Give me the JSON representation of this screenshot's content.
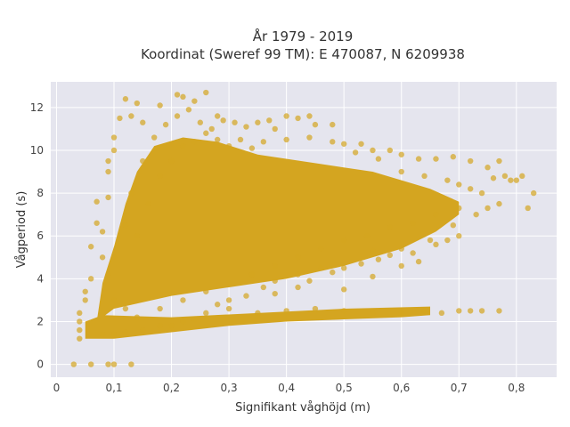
{
  "chart_data": {
    "type": "scatter",
    "title_lines": [
      "År 1979 - 2019",
      "Koordinat (Sweref 99 TM): E 470087, N 6209938"
    ],
    "xlabel": "Signifikant våghöjd (m)",
    "ylabel": "Vågperiod (s)",
    "xlim": [
      -0.01,
      0.87
    ],
    "ylim": [
      -0.6,
      13.2
    ],
    "x_ticks": [
      0,
      0.1,
      0.2,
      0.3,
      0.4,
      0.5,
      0.6,
      0.7,
      0.8
    ],
    "x_tick_labels": [
      "0",
      "0,1",
      "0,2",
      "0,3",
      "0,4",
      "0,5",
      "0,6",
      "0,7",
      "0,8"
    ],
    "y_ticks": [
      0,
      2,
      4,
      6,
      8,
      10,
      12
    ],
    "y_tick_labels": [
      "0",
      "2",
      "4",
      "6",
      "8",
      "10",
      "12"
    ],
    "grid": true,
    "marker_color": "#d4a520",
    "plot_background": "#e5e5ee",
    "series": [
      {
        "points": [
          [
            0.03,
            0.0
          ],
          [
            0.06,
            0.0
          ],
          [
            0.09,
            0.0
          ],
          [
            0.1,
            0.0
          ],
          [
            0.13,
            0.0
          ],
          [
            0.04,
            1.2
          ],
          [
            0.04,
            1.6
          ],
          [
            0.04,
            2.0
          ],
          [
            0.04,
            2.4
          ],
          [
            0.05,
            3.0
          ],
          [
            0.05,
            3.4
          ],
          [
            0.06,
            4.0
          ],
          [
            0.06,
            5.5
          ],
          [
            0.07,
            7.6
          ],
          [
            0.07,
            6.6
          ],
          [
            0.08,
            6.2
          ],
          [
            0.08,
            5.0
          ],
          [
            0.09,
            7.8
          ],
          [
            0.09,
            9.0
          ],
          [
            0.09,
            9.5
          ],
          [
            0.1,
            10.6
          ],
          [
            0.1,
            10.0
          ],
          [
            0.11,
            11.5
          ],
          [
            0.12,
            12.4
          ],
          [
            0.13,
            11.6
          ],
          [
            0.14,
            12.2
          ],
          [
            0.15,
            11.3
          ],
          [
            0.18,
            12.1
          ],
          [
            0.21,
            12.6
          ],
          [
            0.22,
            12.5
          ],
          [
            0.24,
            12.3
          ],
          [
            0.26,
            12.7
          ],
          [
            0.28,
            11.6
          ],
          [
            0.29,
            11.4
          ],
          [
            0.31,
            11.3
          ],
          [
            0.33,
            11.1
          ],
          [
            0.35,
            11.3
          ],
          [
            0.37,
            11.4
          ],
          [
            0.38,
            11.0
          ],
          [
            0.4,
            11.6
          ],
          [
            0.42,
            11.5
          ],
          [
            0.44,
            11.6
          ],
          [
            0.45,
            11.2
          ],
          [
            0.48,
            11.2
          ],
          [
            0.53,
            10.3
          ],
          [
            0.55,
            10.0
          ],
          [
            0.58,
            10.0
          ],
          [
            0.6,
            9.8
          ],
          [
            0.63,
            9.6
          ],
          [
            0.66,
            9.6
          ],
          [
            0.69,
            9.7
          ],
          [
            0.72,
            9.5
          ],
          [
            0.75,
            9.2
          ],
          [
            0.76,
            8.7
          ],
          [
            0.77,
            9.5
          ],
          [
            0.78,
            8.8
          ],
          [
            0.79,
            8.6
          ],
          [
            0.8,
            8.6
          ],
          [
            0.81,
            8.8
          ],
          [
            0.82,
            7.3
          ],
          [
            0.83,
            8.0
          ],
          [
            0.74,
            8.0
          ],
          [
            0.75,
            7.3
          ],
          [
            0.77,
            7.5
          ],
          [
            0.73,
            7.0
          ],
          [
            0.7,
            6.0
          ],
          [
            0.69,
            6.5
          ],
          [
            0.68,
            5.8
          ],
          [
            0.66,
            5.6
          ],
          [
            0.65,
            5.8
          ],
          [
            0.62,
            5.2
          ],
          [
            0.6,
            5.4
          ],
          [
            0.58,
            5.1
          ],
          [
            0.56,
            4.9
          ],
          [
            0.55,
            5.3
          ],
          [
            0.53,
            4.7
          ],
          [
            0.5,
            4.5
          ],
          [
            0.48,
            4.3
          ],
          [
            0.46,
            4.5
          ],
          [
            0.44,
            3.9
          ],
          [
            0.42,
            4.2
          ],
          [
            0.38,
            3.9
          ],
          [
            0.36,
            3.6
          ],
          [
            0.33,
            3.2
          ],
          [
            0.3,
            3.0
          ],
          [
            0.28,
            2.8
          ],
          [
            0.26,
            2.4
          ],
          [
            0.24,
            2.1
          ],
          [
            0.22,
            2.0
          ],
          [
            0.2,
            1.8
          ],
          [
            0.18,
            1.8
          ],
          [
            0.15,
            1.6
          ],
          [
            0.12,
            1.5
          ],
          [
            0.1,
            1.4
          ],
          [
            0.08,
            1.4
          ],
          [
            0.3,
            2.6
          ],
          [
            0.35,
            2.4
          ],
          [
            0.4,
            2.5
          ],
          [
            0.45,
            2.6
          ],
          [
            0.5,
            2.5
          ],
          [
            0.55,
            2.4
          ],
          [
            0.6,
            2.4
          ],
          [
            0.64,
            2.5
          ],
          [
            0.67,
            2.4
          ],
          [
            0.7,
            2.5
          ],
          [
            0.72,
            2.5
          ],
          [
            0.74,
            2.5
          ],
          [
            0.77,
            2.5
          ],
          [
            0.38,
            3.3
          ],
          [
            0.42,
            3.6
          ],
          [
            0.5,
            3.5
          ],
          [
            0.55,
            4.1
          ],
          [
            0.6,
            4.6
          ],
          [
            0.63,
            4.8
          ],
          [
            0.14,
            6.0
          ],
          [
            0.16,
            7.5
          ],
          [
            0.18,
            8.8
          ],
          [
            0.2,
            9.5
          ],
          [
            0.22,
            10.2
          ],
          [
            0.24,
            10.4
          ],
          [
            0.26,
            10.8
          ],
          [
            0.28,
            10.5
          ],
          [
            0.3,
            10.2
          ],
          [
            0.32,
            10.5
          ],
          [
            0.34,
            10.1
          ],
          [
            0.36,
            10.4
          ],
          [
            0.4,
            10.5
          ],
          [
            0.44,
            10.6
          ],
          [
            0.48,
            10.4
          ],
          [
            0.5,
            10.3
          ],
          [
            0.52,
            9.9
          ],
          [
            0.56,
            9.6
          ],
          [
            0.6,
            9.0
          ],
          [
            0.64,
            8.8
          ],
          [
            0.68,
            8.6
          ],
          [
            0.7,
            8.4
          ],
          [
            0.72,
            8.2
          ],
          [
            0.7,
            7.3
          ],
          [
            0.66,
            7.0
          ],
          [
            0.62,
            6.6
          ],
          [
            0.58,
            6.4
          ],
          [
            0.54,
            6.0
          ],
          [
            0.5,
            5.8
          ],
          [
            0.46,
            5.4
          ],
          [
            0.42,
            5.0
          ],
          [
            0.38,
            4.6
          ],
          [
            0.34,
            4.2
          ],
          [
            0.3,
            3.8
          ],
          [
            0.26,
            3.4
          ],
          [
            0.22,
            3.0
          ],
          [
            0.18,
            2.6
          ],
          [
            0.14,
            2.2
          ],
          [
            0.12,
            2.6
          ],
          [
            0.1,
            3.0
          ],
          [
            0.09,
            4.2
          ],
          [
            0.1,
            5.0
          ],
          [
            0.12,
            6.5
          ],
          [
            0.13,
            8.0
          ],
          [
            0.15,
            9.5
          ],
          [
            0.17,
            10.6
          ],
          [
            0.19,
            11.2
          ],
          [
            0.21,
            11.6
          ],
          [
            0.23,
            11.9
          ],
          [
            0.25,
            11.3
          ],
          [
            0.27,
            11.0
          ]
        ]
      }
    ]
  }
}
